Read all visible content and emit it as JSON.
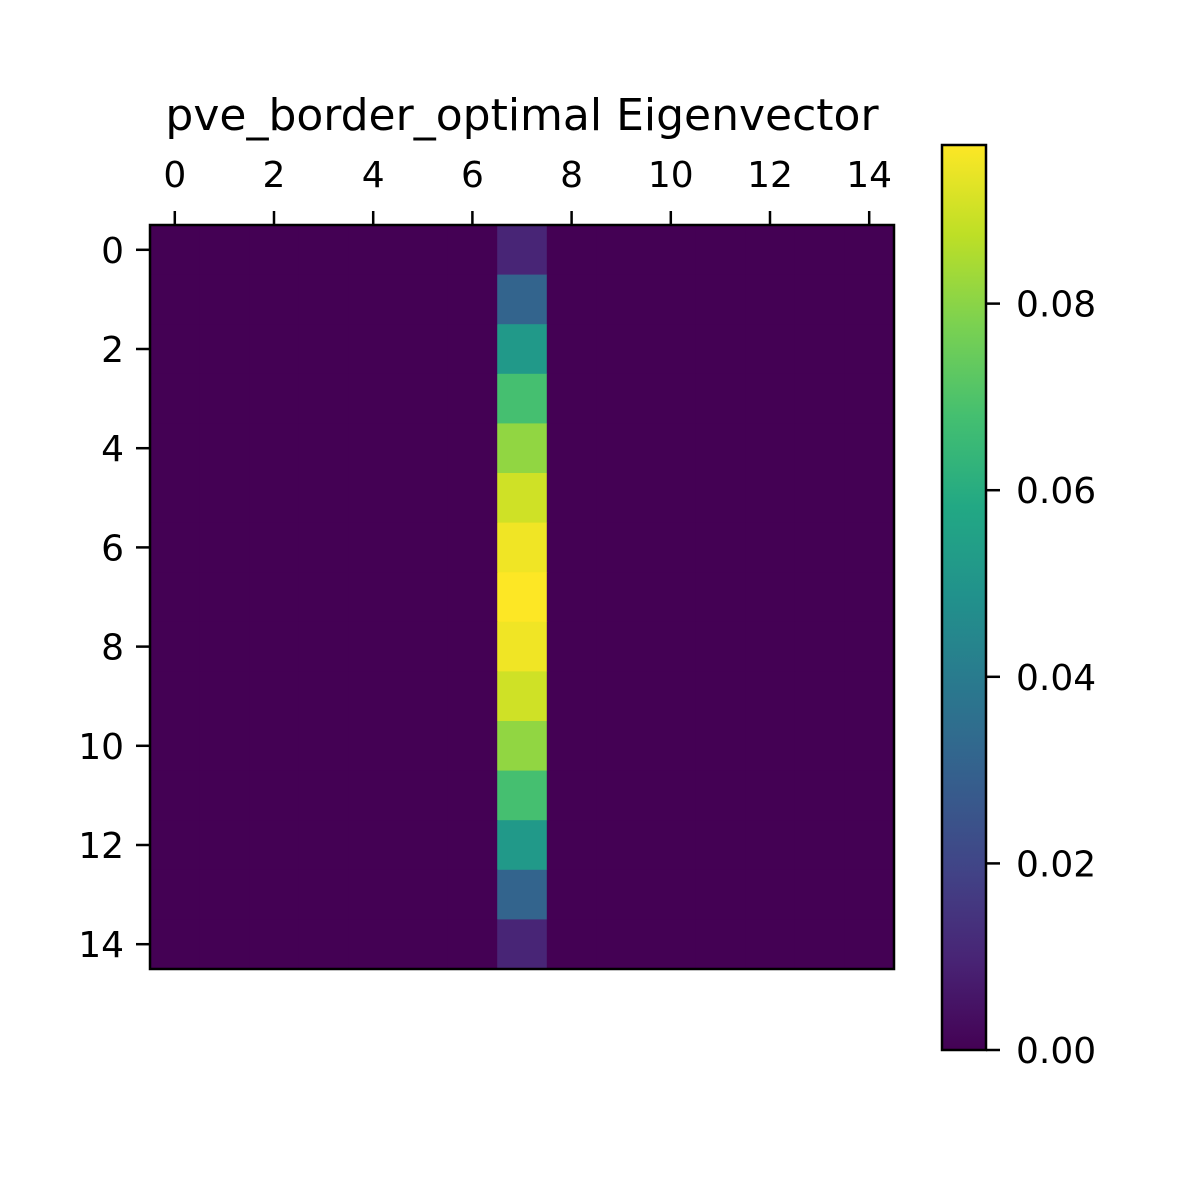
{
  "chart_data": {
    "type": "heatmap",
    "title": "pve_border_optimal Eigenvector",
    "xlabel": "",
    "ylabel": "",
    "colormap": "viridis",
    "n_rows": 15,
    "n_cols": 15,
    "x_ticks": [
      0,
      2,
      4,
      6,
      8,
      10,
      12,
      14
    ],
    "x_tick_labels": [
      "0",
      "2",
      "4",
      "6",
      "8",
      "10",
      "12",
      "14"
    ],
    "y_ticks": [
      0,
      2,
      4,
      6,
      8,
      10,
      12,
      14
    ],
    "y_tick_labels": [
      "0",
      "2",
      "4",
      "6",
      "8",
      "10",
      "12",
      "14"
    ],
    "x_axis_position": "top",
    "active_column": 7,
    "column_values": [
      0.01,
      0.031,
      0.052,
      0.068,
      0.081,
      0.09,
      0.095,
      0.097,
      0.095,
      0.09,
      0.081,
      0.068,
      0.052,
      0.031,
      0.01
    ],
    "background_value": 0.0,
    "vmin": 0.0,
    "vmax": 0.097,
    "colorbar": {
      "ticks": [
        0.0,
        0.02,
        0.04,
        0.06,
        0.08
      ],
      "tick_labels": [
        "0.00",
        "0.02",
        "0.04",
        "0.06",
        "0.08"
      ],
      "position": "right"
    },
    "grid": false
  }
}
